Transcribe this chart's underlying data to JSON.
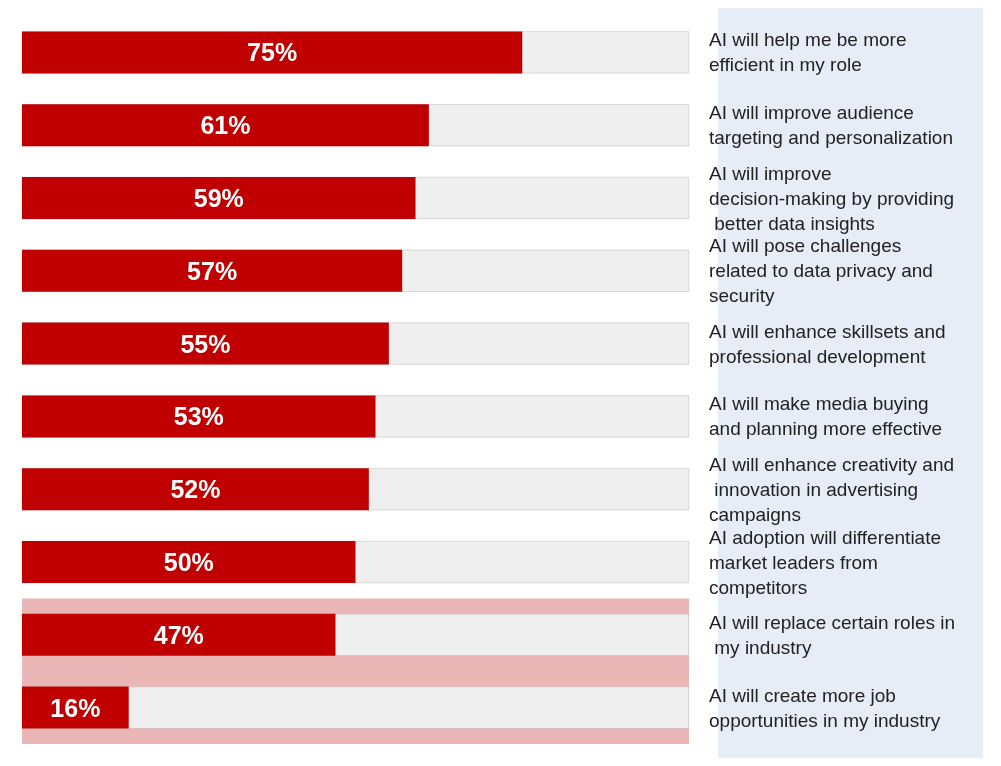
{
  "chart_data": {
    "type": "bar",
    "orientation": "horizontal",
    "categories": [
      "AI will help me be more efficient in my role",
      "AI will improve audience targeting and personalization",
      "AI will improve decision-making by providing better data insights",
      "AI will pose challenges related to data privacy and security",
      "AI will enhance skillsets and professional development",
      "AI will make media buying and planning more effective",
      "AI will enhance creativity and innovation in advertising campaigns",
      "AI adoption will differentiate market leaders from competitors",
      "AI will replace certain roles in my industry",
      "AI will create more job opportunities in my industry"
    ],
    "values": [
      75,
      61,
      59,
      57,
      55,
      53,
      52,
      50,
      47,
      16
    ],
    "value_labels": [
      "75%",
      "61%",
      "59%",
      "57%",
      "55%",
      "53%",
      "52%",
      "50%",
      "47%",
      "16%"
    ],
    "color": "#c00000",
    "xlim": [
      0,
      100
    ],
    "tick_labels": "y",
    "bands": [
      {
        "axis": "y",
        "from": "AI will replace certain roles in my industry",
        "to": "AI will create more job opportunities in my industry",
        "color": "#e8a9a9"
      }
    ]
  }
}
